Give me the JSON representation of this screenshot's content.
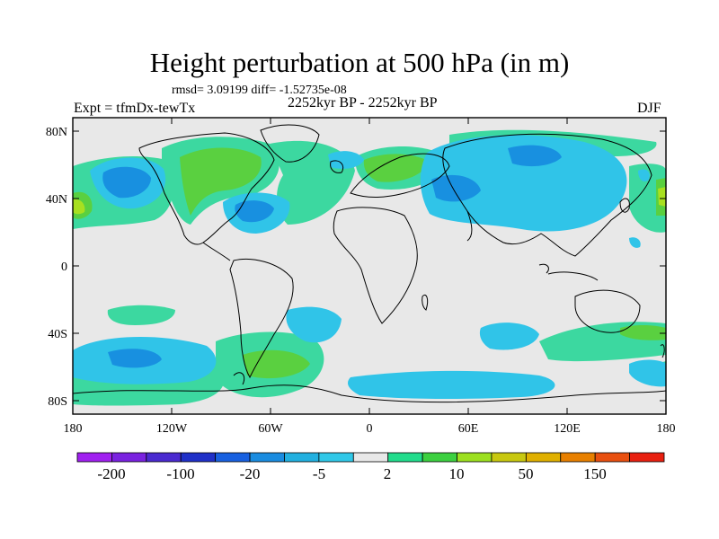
{
  "title": "Height perturbation at 500 hPa (in m)",
  "stats": "rmsd= 3.09199 diff= -1.52735e-08",
  "experiment": "Expt = tfmDx-tewTx",
  "period": "2252kyr BP - 2252kyr BP",
  "season": "DJF",
  "axes": {
    "lat_labels": [
      "80N",
      "40N",
      "0",
      "40S",
      "80S"
    ],
    "lon_labels": [
      "180",
      "120W",
      "60W",
      "0",
      "60E",
      "120E",
      "180"
    ]
  },
  "colorbar": {
    "labels": [
      "-200",
      "-100",
      "-20",
      "-5",
      "2",
      "10",
      "50",
      "150"
    ],
    "colors": [
      "#a020f0",
      "#7a22e0",
      "#4a2ad0",
      "#2030c8",
      "#1860e0",
      "#1a8ce0",
      "#22b0e0",
      "#30c8e8",
      "#e8e8e8",
      "#22dc8c",
      "#3cd040",
      "#9ce020",
      "#c8c810",
      "#e0b000",
      "#e88000",
      "#e85010",
      "#e82010"
    ]
  },
  "colors": {
    "background": "#e8e8e8",
    "coast": "#000000"
  }
}
